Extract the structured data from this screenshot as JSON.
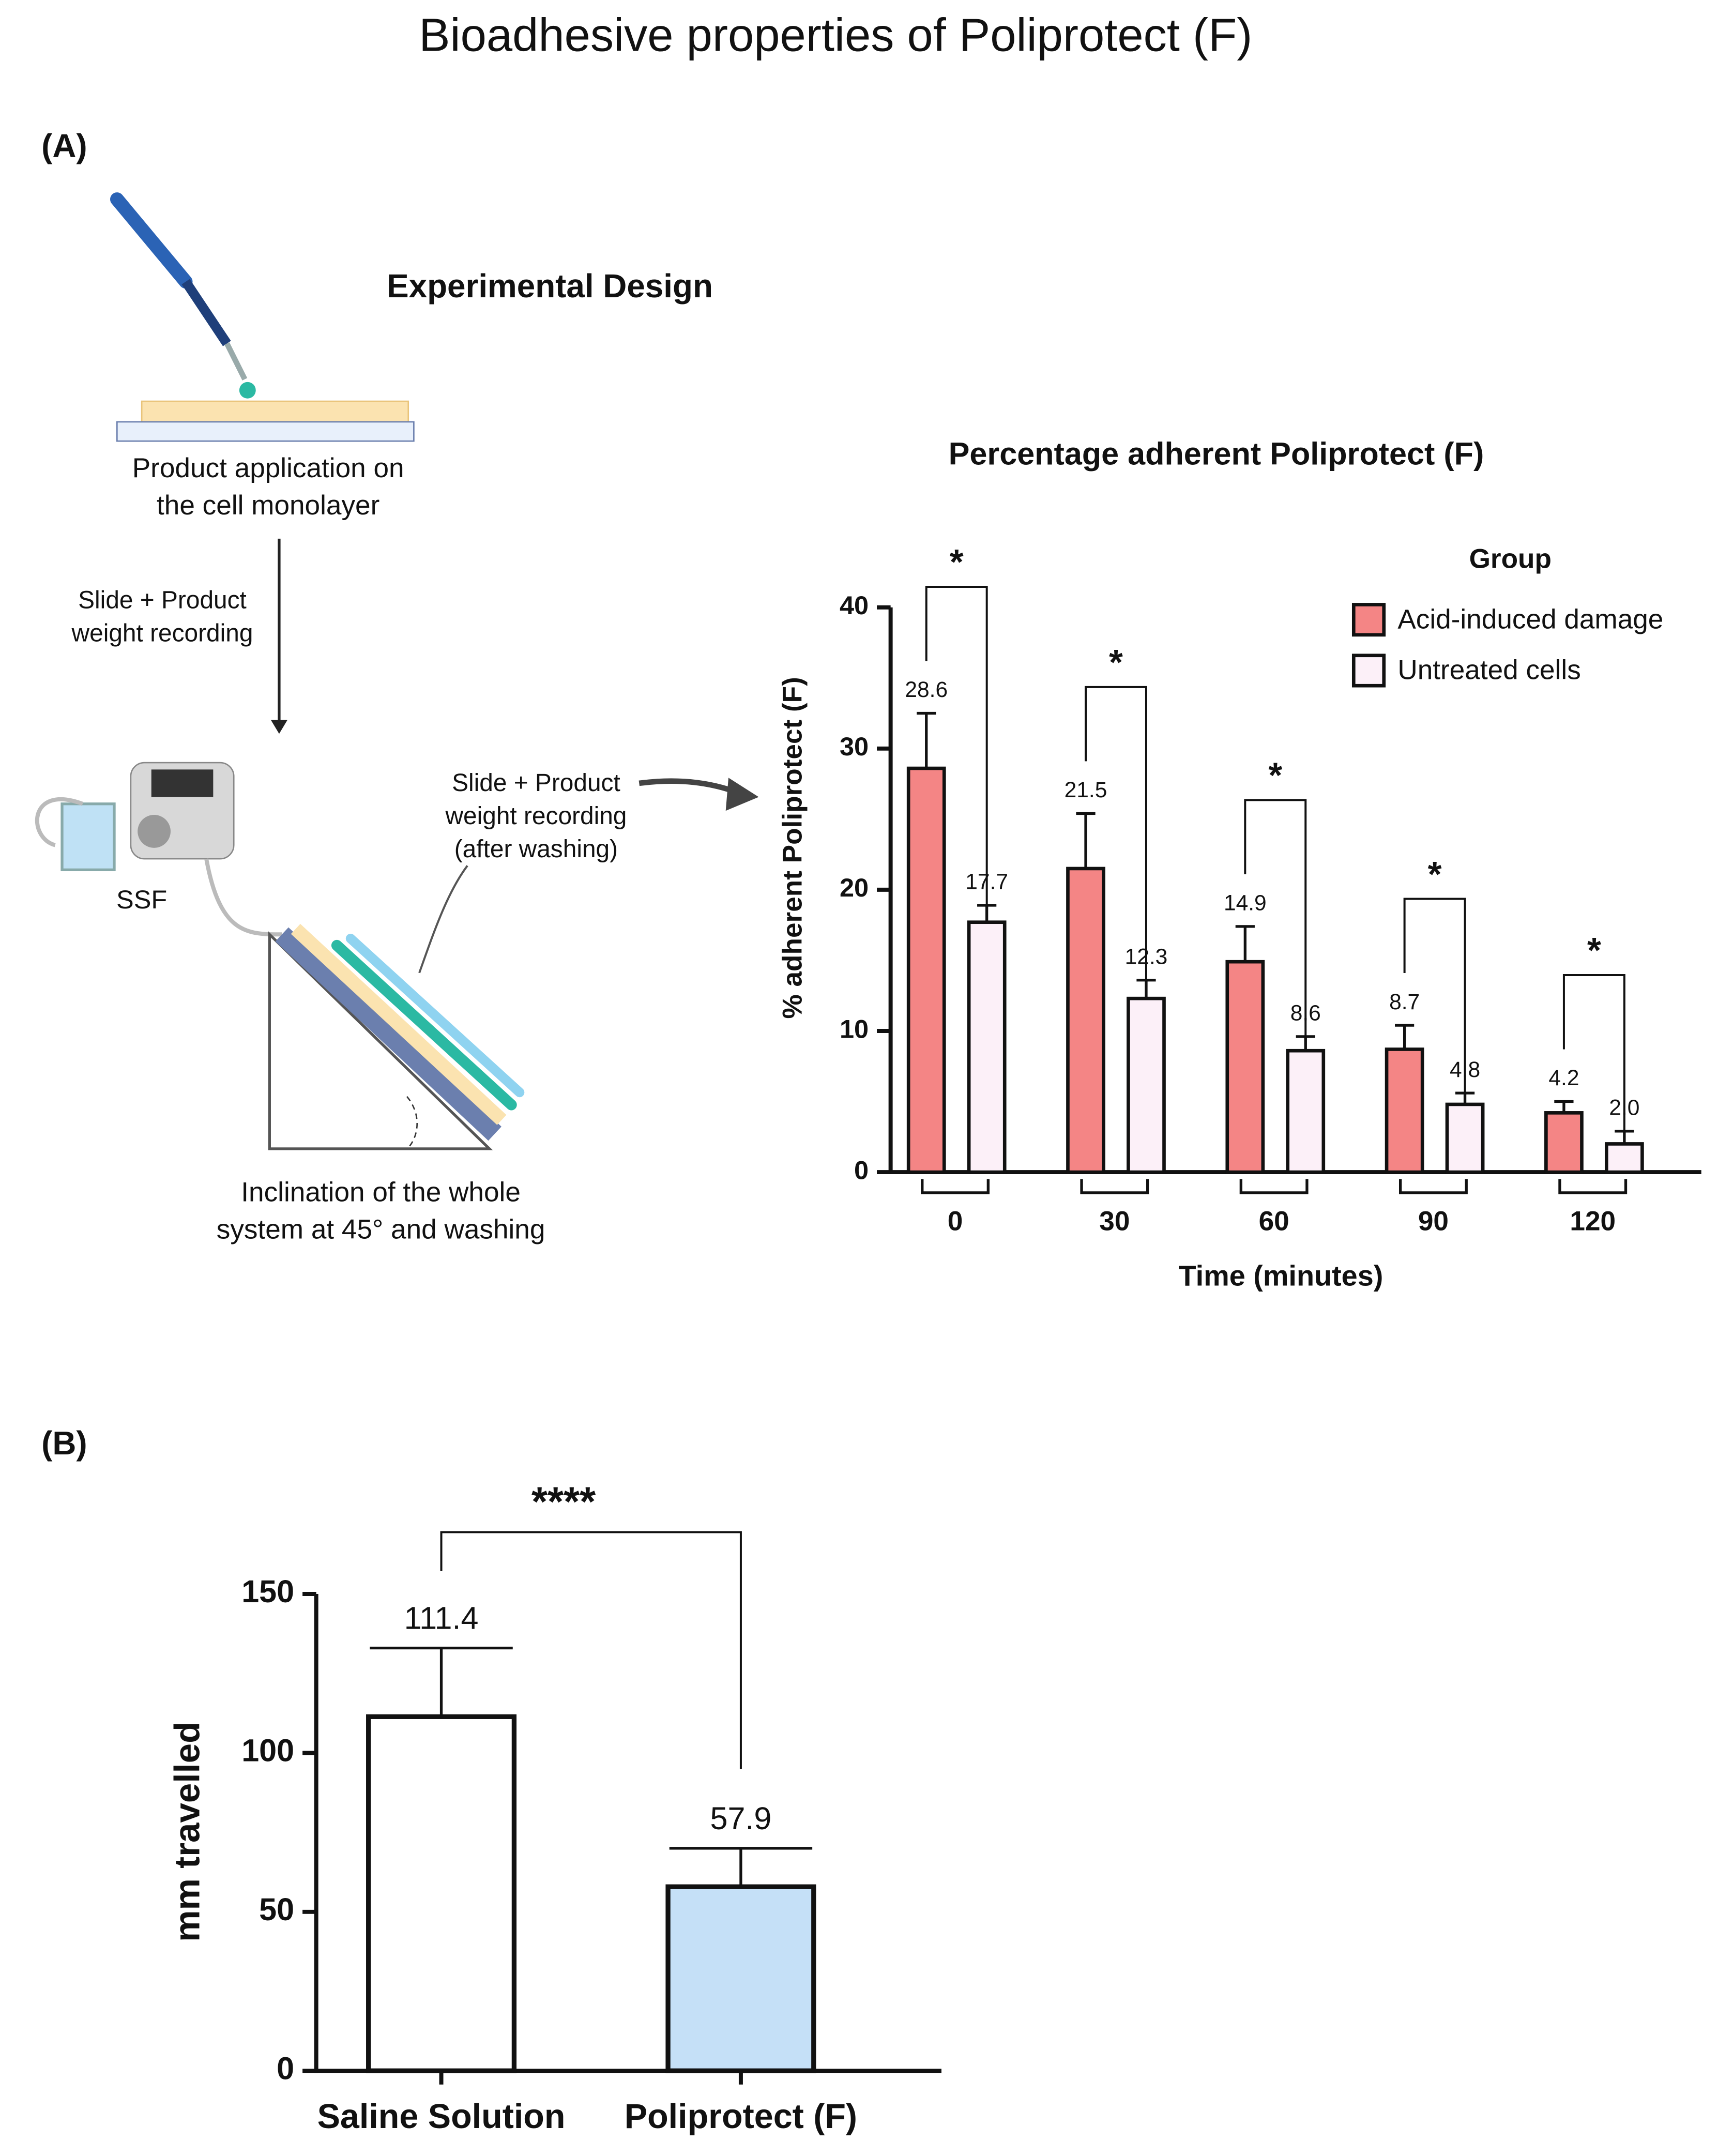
{
  "title": "Bioadhesive properties of Poliprotect (F)",
  "panel_a": {
    "label": "(A)",
    "design": {
      "title": "Experimental Design",
      "application": [
        "Product application on",
        "the cell monolayer"
      ],
      "recording": [
        "Slide + Product",
        "weight recording"
      ],
      "ssf": "SSF",
      "recording_after": [
        "Slide + Product",
        "weight recording",
        "(after washing)"
      ],
      "inclination": [
        "Inclination of the whole",
        "system at 45° and washing"
      ]
    }
  },
  "panel_b": {
    "label": "(B)"
  },
  "chart_data": [
    {
      "type": "bar",
      "title": "Percentage adherent Poliprotect (F)",
      "x_label": "Time (minutes)",
      "y_label": "% adherent Poliprotect (F)",
      "categories": [
        "0",
        "30",
        "60",
        "90",
        "120"
      ],
      "legend_title": "Group",
      "legend": "upper right",
      "series": [
        {
          "name": "Acid-induced damage",
          "color": "#f48585",
          "values": [
            28.6,
            21.5,
            14.9,
            8.7,
            4.2
          ],
          "value_labels": [
            "28.6",
            "21.5",
            "14.9",
            "8.7",
            "4.2"
          ],
          "errors": [
            3.9,
            3.9,
            2.5,
            1.7,
            0.8
          ]
        },
        {
          "name": "Untreated cells",
          "color": "#fcf0f8",
          "values": [
            17.7,
            12.3,
            8.6,
            4.8,
            2.0
          ],
          "value_labels": [
            "17.7",
            "12.3",
            "8.6",
            "4.8",
            "2.0"
          ],
          "errors": [
            1.2,
            1.3,
            1.0,
            0.8,
            0.9
          ]
        }
      ],
      "significance": [
        "*",
        "*",
        "*",
        "*",
        "*"
      ],
      "ylim": [
        0,
        40
      ],
      "yticks": [
        0,
        10,
        20,
        30,
        40
      ]
    },
    {
      "type": "bar",
      "y_label": "mm travelled",
      "categories": [
        "Saline Solution",
        "Poliprotect (F)"
      ],
      "values": [
        111.4,
        57.9
      ],
      "errors": [
        21.6,
        12.1
      ],
      "colors": [
        "#ffffff",
        "#c5e0f7"
      ],
      "significance": "****",
      "ylim": [
        0,
        150
      ],
      "yticks": [
        0,
        50,
        100,
        150
      ]
    }
  ]
}
